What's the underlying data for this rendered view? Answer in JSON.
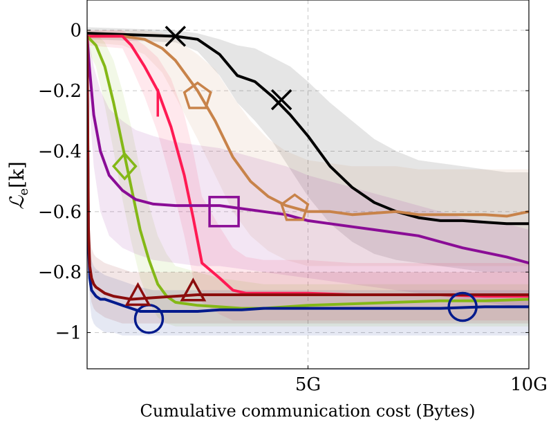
{
  "chart_data": {
    "type": "line",
    "title": "",
    "xlabel": "Cumulative communication cost (Bytes)",
    "ylabel": {
      "main": "ℒ",
      "sub": "e",
      "suffix": "[k]"
    },
    "xlim": [
      0,
      10
    ],
    "ylim": [
      -1.12,
      0.1
    ],
    "grid": true,
    "legend": "none",
    "xticks": [
      {
        "value": 5,
        "label": "5G"
      },
      {
        "value": 10,
        "label": "10G"
      }
    ],
    "yticks": [
      {
        "value": 0,
        "label": "0"
      },
      {
        "value": -0.2,
        "label": "−0.2"
      },
      {
        "value": -0.4,
        "label": "−0.4"
      },
      {
        "value": -0.6,
        "label": "−0.6"
      },
      {
        "value": -0.8,
        "label": "−0.8"
      },
      {
        "value": -1,
        "label": "−1"
      }
    ],
    "series": [
      {
        "color": "#000000",
        "marker": "x",
        "markers": [
          [
            2.0,
            -0.02
          ],
          [
            4.4,
            -0.23
          ]
        ],
        "x": [
          0,
          1.0,
          2.0,
          2.5,
          3.0,
          3.4,
          3.8,
          4.2,
          4.6,
          5.0,
          5.5,
          6.0,
          6.5,
          7.0,
          7.5,
          8.0,
          8.5,
          9.0,
          9.5,
          10.0
        ],
        "y": [
          -0.01,
          -0.015,
          -0.02,
          -0.03,
          -0.08,
          -0.15,
          -0.17,
          -0.22,
          -0.28,
          -0.35,
          -0.45,
          -0.52,
          -0.57,
          -0.6,
          -0.62,
          -0.63,
          -0.63,
          -0.635,
          -0.64,
          -0.64
        ],
        "band_upper": [
          0.01,
          0.005,
          0.0,
          -0.01,
          -0.03,
          -0.05,
          -0.06,
          -0.09,
          -0.12,
          -0.17,
          -0.24,
          -0.3,
          -0.36,
          -0.4,
          -0.43,
          -0.44,
          -0.45,
          -0.46,
          -0.47,
          -0.47
        ],
        "band_lower": [
          -0.03,
          -0.035,
          -0.04,
          -0.07,
          -0.15,
          -0.24,
          -0.3,
          -0.37,
          -0.46,
          -0.55,
          -0.64,
          -0.7,
          -0.74,
          -0.76,
          -0.77,
          -0.78,
          -0.79,
          -0.8,
          -0.8,
          -0.8
        ]
      },
      {
        "color": "#c8834a",
        "marker": "pentagon",
        "markers": [
          [
            2.5,
            -0.22
          ],
          [
            4.7,
            -0.59
          ]
        ],
        "x": [
          0,
          0.8,
          1.3,
          1.7,
          2.0,
          2.5,
          2.9,
          3.3,
          3.7,
          4.1,
          4.5,
          5.0,
          5.5,
          6.0,
          6.5,
          7.0,
          7.5,
          8.0,
          8.5,
          9.0,
          9.5,
          10.0
        ],
        "y": [
          -0.02,
          -0.02,
          -0.03,
          -0.06,
          -0.1,
          -0.2,
          -0.3,
          -0.42,
          -0.5,
          -0.55,
          -0.58,
          -0.6,
          -0.6,
          -0.61,
          -0.605,
          -0.6,
          -0.61,
          -0.61,
          -0.61,
          -0.61,
          -0.615,
          -0.6
        ],
        "band_upper": [
          0.0,
          0.0,
          0.0,
          -0.01,
          -0.03,
          -0.08,
          -0.13,
          -0.22,
          -0.3,
          -0.36,
          -0.4,
          -0.43,
          -0.44,
          -0.45,
          -0.45,
          -0.45,
          -0.46,
          -0.46,
          -0.46,
          -0.46,
          -0.46,
          -0.46
        ],
        "band_lower": [
          -0.04,
          -0.05,
          -0.08,
          -0.14,
          -0.22,
          -0.36,
          -0.48,
          -0.6,
          -0.68,
          -0.73,
          -0.76,
          -0.78,
          -0.78,
          -0.78,
          -0.78,
          -0.78,
          -0.78,
          -0.78,
          -0.78,
          -0.78,
          -0.78,
          -0.78
        ]
      },
      {
        "color": "#ff1a53",
        "marker": "vbar",
        "markers": [
          [
            1.6,
            -0.24
          ]
        ],
        "x": [
          0,
          0.8,
          1.0,
          1.3,
          1.6,
          1.9,
          2.2,
          2.4,
          2.6,
          3.0,
          3.3,
          3.6,
          4.0,
          5.0,
          6.0,
          7.0,
          8.0,
          9.0,
          10.0
        ],
        "y": [
          -0.02,
          -0.02,
          -0.05,
          -0.12,
          -0.2,
          -0.32,
          -0.48,
          -0.62,
          -0.77,
          -0.82,
          -0.86,
          -0.87,
          -0.87,
          -0.87,
          -0.875,
          -0.875,
          -0.875,
          -0.88,
          -0.88
        ],
        "band_upper": [
          0.0,
          0.0,
          -0.02,
          -0.05,
          -0.09,
          -0.16,
          -0.28,
          -0.4,
          -0.55,
          -0.65,
          -0.72,
          -0.75,
          -0.76,
          -0.76,
          -0.77,
          -0.77,
          -0.77,
          -0.77,
          -0.77
        ],
        "band_lower": [
          -0.05,
          -0.06,
          -0.12,
          -0.22,
          -0.34,
          -0.5,
          -0.68,
          -0.82,
          -0.9,
          -0.94,
          -0.96,
          -0.96,
          -0.96,
          -0.96,
          -0.96,
          -0.96,
          -0.96,
          -0.96,
          -0.96
        ]
      },
      {
        "color": "#84b817",
        "marker": "diamond",
        "markers": [
          [
            0.85,
            -0.45
          ]
        ],
        "x": [
          0,
          0.2,
          0.4,
          0.6,
          0.8,
          1.0,
          1.2,
          1.4,
          1.6,
          1.8,
          2.0,
          2.5,
          3.0,
          3.5,
          4.0,
          5.0,
          6.0,
          7.0,
          8.0,
          9.0,
          10.0
        ],
        "y": [
          -0.02,
          -0.05,
          -0.12,
          -0.24,
          -0.38,
          -0.52,
          -0.66,
          -0.76,
          -0.84,
          -0.88,
          -0.9,
          -0.91,
          -0.915,
          -0.92,
          -0.92,
          -0.91,
          -0.905,
          -0.9,
          -0.895,
          -0.895,
          -0.89
        ],
        "band_upper": [
          0.0,
          -0.01,
          -0.04,
          -0.1,
          -0.2,
          -0.32,
          -0.46,
          -0.58,
          -0.68,
          -0.74,
          -0.78,
          -0.8,
          -0.82,
          -0.83,
          -0.84,
          -0.84,
          -0.84,
          -0.84,
          -0.84,
          -0.84,
          -0.84
        ],
        "band_lower": [
          -0.06,
          -0.12,
          -0.25,
          -0.4,
          -0.56,
          -0.7,
          -0.82,
          -0.9,
          -0.95,
          -0.97,
          -0.98,
          -0.98,
          -0.98,
          -0.98,
          -0.98,
          -0.98,
          -0.98,
          -0.98,
          -0.98,
          -0.98,
          -0.98
        ]
      },
      {
        "color": "#8a0d96",
        "marker": "square",
        "markers": [
          [
            3.1,
            -0.6
          ]
        ],
        "x": [
          0,
          0.05,
          0.15,
          0.3,
          0.5,
          0.8,
          1.1,
          1.5,
          2.0,
          2.5,
          3.0,
          3.5,
          4.0,
          4.5,
          5.0,
          5.5,
          6.0,
          6.5,
          7.0,
          7.5,
          8.0,
          8.5,
          9.0,
          9.5,
          10.0
        ],
        "y": [
          -0.02,
          -0.12,
          -0.28,
          -0.4,
          -0.48,
          -0.53,
          -0.56,
          -0.575,
          -0.58,
          -0.58,
          -0.58,
          -0.59,
          -0.6,
          -0.61,
          -0.63,
          -0.64,
          -0.65,
          -0.66,
          -0.67,
          -0.68,
          -0.7,
          -0.72,
          -0.735,
          -0.75,
          -0.77
        ],
        "band_upper": [
          0.0,
          -0.04,
          -0.12,
          -0.2,
          -0.26,
          -0.3,
          -0.33,
          -0.35,
          -0.37,
          -0.38,
          -0.39,
          -0.41,
          -0.43,
          -0.45,
          -0.48,
          -0.5,
          -0.52,
          -0.54,
          -0.56,
          -0.58,
          -0.6,
          -0.62,
          -0.63,
          -0.64,
          -0.66
        ],
        "band_lower": [
          -0.05,
          -0.25,
          -0.45,
          -0.6,
          -0.68,
          -0.72,
          -0.74,
          -0.76,
          -0.77,
          -0.78,
          -0.78,
          -0.79,
          -0.8,
          -0.81,
          -0.82,
          -0.83,
          -0.84,
          -0.85,
          -0.86,
          -0.87,
          -0.88,
          -0.89,
          -0.9,
          -0.91,
          -0.92
        ]
      },
      {
        "color": "#001a8c",
        "marker": "circle",
        "markers": [
          [
            1.4,
            -0.955
          ],
          [
            8.5,
            -0.915
          ]
        ],
        "x": [
          0,
          0.03,
          0.06,
          0.1,
          0.15,
          0.2,
          0.3,
          0.4,
          0.6,
          0.8,
          1.0,
          1.2,
          1.5,
          2.0,
          2.5,
          3.0,
          3.5,
          4.0,
          5.0,
          6.0,
          7.0,
          8.0,
          9.0,
          10.0
        ],
        "y": [
          -0.02,
          -0.7,
          -0.82,
          -0.86,
          -0.87,
          -0.88,
          -0.89,
          -0.89,
          -0.9,
          -0.91,
          -0.92,
          -0.93,
          -0.93,
          -0.93,
          -0.93,
          -0.925,
          -0.925,
          -0.92,
          -0.92,
          -0.92,
          -0.92,
          -0.92,
          -0.915,
          -0.915
        ],
        "band_upper": [
          0.0,
          -0.6,
          -0.72,
          -0.76,
          -0.78,
          -0.79,
          -0.8,
          -0.81,
          -0.82,
          -0.83,
          -0.84,
          -0.85,
          -0.86,
          -0.86,
          -0.86,
          -0.86,
          -0.86,
          -0.86,
          -0.86,
          -0.86,
          -0.86,
          -0.86,
          -0.86,
          -0.86
        ],
        "band_lower": [
          -0.05,
          -0.8,
          -0.9,
          -0.95,
          -0.97,
          -0.98,
          -0.99,
          -1.0,
          -1.0,
          -1.01,
          -1.01,
          -1.01,
          -1.01,
          -1.01,
          -1.01,
          -1.01,
          -1.01,
          -1.01,
          -1.01,
          -1.01,
          -1.01,
          -1.01,
          -1.01,
          -1.01
        ]
      },
      {
        "color": "#8b0d0d",
        "marker": "triangle",
        "markers": [
          [
            1.15,
            -0.885
          ],
          [
            2.4,
            -0.87
          ]
        ],
        "x": [
          0,
          0.03,
          0.06,
          0.1,
          0.15,
          0.2,
          0.3,
          0.4,
          0.6,
          0.8,
          1.0,
          1.5,
          2.0,
          2.5,
          3.0,
          4.0,
          5.0,
          6.0,
          7.0,
          8.0,
          9.0,
          10.0
        ],
        "y": [
          -0.02,
          -0.65,
          -0.78,
          -0.82,
          -0.84,
          -0.85,
          -0.86,
          -0.87,
          -0.88,
          -0.885,
          -0.89,
          -0.885,
          -0.88,
          -0.875,
          -0.875,
          -0.875,
          -0.875,
          -0.875,
          -0.875,
          -0.875,
          -0.875,
          -0.875
        ],
        "band_upper": [
          0.0,
          -0.55,
          -0.68,
          -0.72,
          -0.74,
          -0.75,
          -0.76,
          -0.77,
          -0.78,
          -0.79,
          -0.8,
          -0.8,
          -0.8,
          -0.8,
          -0.8,
          -0.8,
          -0.8,
          -0.8,
          -0.8,
          -0.8,
          -0.8,
          -0.8
        ],
        "band_lower": [
          -0.05,
          -0.75,
          -0.86,
          -0.9,
          -0.92,
          -0.93,
          -0.94,
          -0.95,
          -0.96,
          -0.97,
          -0.97,
          -0.97,
          -0.97,
          -0.97,
          -0.97,
          -0.97,
          -0.97,
          -0.97,
          -0.97,
          -0.97,
          -0.97,
          -0.97
        ]
      }
    ]
  }
}
